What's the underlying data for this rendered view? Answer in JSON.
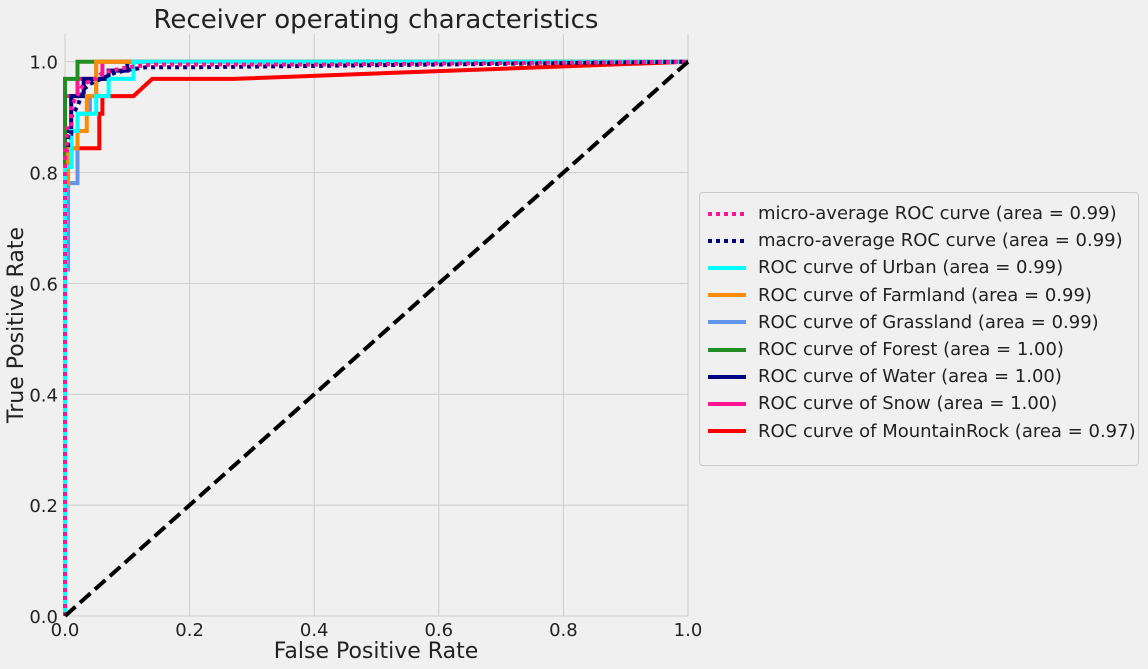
{
  "chart_data": {
    "type": "line",
    "title": "Receiver operating characteristics",
    "xlabel": "False Positive Rate",
    "ylabel": "True Positive Rate",
    "xlim": [
      0.0,
      1.0
    ],
    "ylim": [
      0.0,
      1.05
    ],
    "xticks": [
      "0.0",
      "0.2",
      "0.4",
      "0.6",
      "0.8",
      "1.0"
    ],
    "yticks": [
      "0.0",
      "0.2",
      "0.4",
      "0.6",
      "0.8",
      "1.0"
    ],
    "grid": true,
    "legend_position": "center-right outside",
    "series": [
      {
        "name": "micro-average ROC curve (area = 0.99)",
        "color": "#ff1493",
        "style": "dotted",
        "x": [
          0,
          0,
          0.003,
          0.003,
          0.01,
          0.01,
          0.02,
          0.03,
          0.05,
          0.06,
          0.08,
          0.1,
          0.14,
          0.2,
          0.4,
          1.0
        ],
        "y": [
          0,
          0.84,
          0.84,
          0.88,
          0.88,
          0.92,
          0.94,
          0.96,
          0.97,
          0.98,
          0.985,
          0.99,
          0.995,
          0.995,
          0.995,
          1.0
        ]
      },
      {
        "name": "macro-average ROC curve (area = 0.99)",
        "color": "#000080",
        "style": "dotted",
        "x": [
          0,
          0,
          0.005,
          0.005,
          0.01,
          0.01,
          0.02,
          0.03,
          0.04,
          0.06,
          0.08,
          0.1,
          0.13,
          0.2,
          1.0
        ],
        "y": [
          0,
          0.84,
          0.84,
          0.87,
          0.87,
          0.9,
          0.92,
          0.95,
          0.96,
          0.97,
          0.98,
          0.985,
          0.99,
          0.99,
          1.0
        ]
      },
      {
        "name": "ROC curve of Urban (area = 0.99)",
        "color": "#00ffff",
        "style": "solid",
        "x": [
          0,
          0,
          0.01,
          0.01,
          0.02,
          0.02,
          0.03,
          0.03,
          0.05,
          0.05,
          0.07,
          0.07,
          0.1,
          0.11,
          0.11,
          1.0
        ],
        "y": [
          0,
          0.81,
          0.81,
          0.875,
          0.875,
          0.906,
          0.906,
          0.906,
          0.906,
          0.938,
          0.938,
          0.969,
          0.969,
          0.969,
          1.0,
          1.0
        ]
      },
      {
        "name": "ROC curve of Farmland (area = 0.99)",
        "color": "#ff8c00",
        "style": "solid",
        "x": [
          0,
          0,
          0.005,
          0.005,
          0.02,
          0.02,
          0.035,
          0.035,
          0.05,
          0.05,
          1.0
        ],
        "y": [
          0,
          0.78,
          0.78,
          0.844,
          0.844,
          0.875,
          0.875,
          0.938,
          0.938,
          1.0,
          1.0
        ]
      },
      {
        "name": "ROC curve of Grassland (area = 0.99)",
        "color": "#6495ed",
        "style": "solid",
        "x": [
          0,
          0,
          0.005,
          0.005,
          0.02,
          0.02,
          0.04,
          0.04,
          0.05,
          0.05,
          1.0
        ],
        "y": [
          0,
          0.625,
          0.625,
          0.781,
          0.781,
          0.906,
          0.906,
          0.938,
          0.938,
          1.0,
          1.0
        ]
      },
      {
        "name": "ROC curve of Forest (area = 1.00)",
        "color": "#228b22",
        "style": "solid",
        "x": [
          0,
          0,
          0.02,
          0.02,
          1.0
        ],
        "y": [
          0,
          0.969,
          0.969,
          1.0,
          1.0
        ]
      },
      {
        "name": "ROC curve of Water (area = 1.00)",
        "color": "#000080",
        "style": "solid",
        "x": [
          0,
          0,
          0.01,
          0.01,
          0.03,
          0.03,
          0.05,
          0.05,
          0.07,
          0.07,
          0.1,
          0.1,
          1.0
        ],
        "y": [
          0,
          0.875,
          0.875,
          0.938,
          0.938,
          0.969,
          0.969,
          0.969,
          0.969,
          0.984,
          0.984,
          1.0,
          1.0
        ]
      },
      {
        "name": "ROC curve of Snow (area = 1.00)",
        "color": "#ff1493",
        "style": "solid",
        "x": [
          0,
          0,
          0.005,
          0.005,
          0.02,
          0.02,
          0.04,
          0.04,
          0.06,
          0.06,
          1.0
        ],
        "y": [
          0,
          0.938,
          0.938,
          0.938,
          0.938,
          0.969,
          0.969,
          0.969,
          0.969,
          1.0,
          1.0
        ]
      },
      {
        "name": "ROC curve of MountainRock (area = 0.97)",
        "color": "#ff0000",
        "style": "solid",
        "x": [
          0,
          0,
          0.005,
          0.005,
          0.01,
          0.01,
          0.055,
          0.055,
          0.06,
          0.06,
          0.11,
          0.14,
          0.14,
          0.27,
          1.0
        ],
        "y": [
          0,
          0.812,
          0.812,
          0.812,
          0.812,
          0.844,
          0.844,
          0.906,
          0.906,
          0.938,
          0.938,
          0.969,
          0.969,
          0.969,
          1.0
        ]
      },
      {
        "name": "",
        "color": "#000000",
        "style": "dashed",
        "x": [
          0,
          1.0
        ],
        "y": [
          0,
          1.0
        ]
      }
    ]
  }
}
